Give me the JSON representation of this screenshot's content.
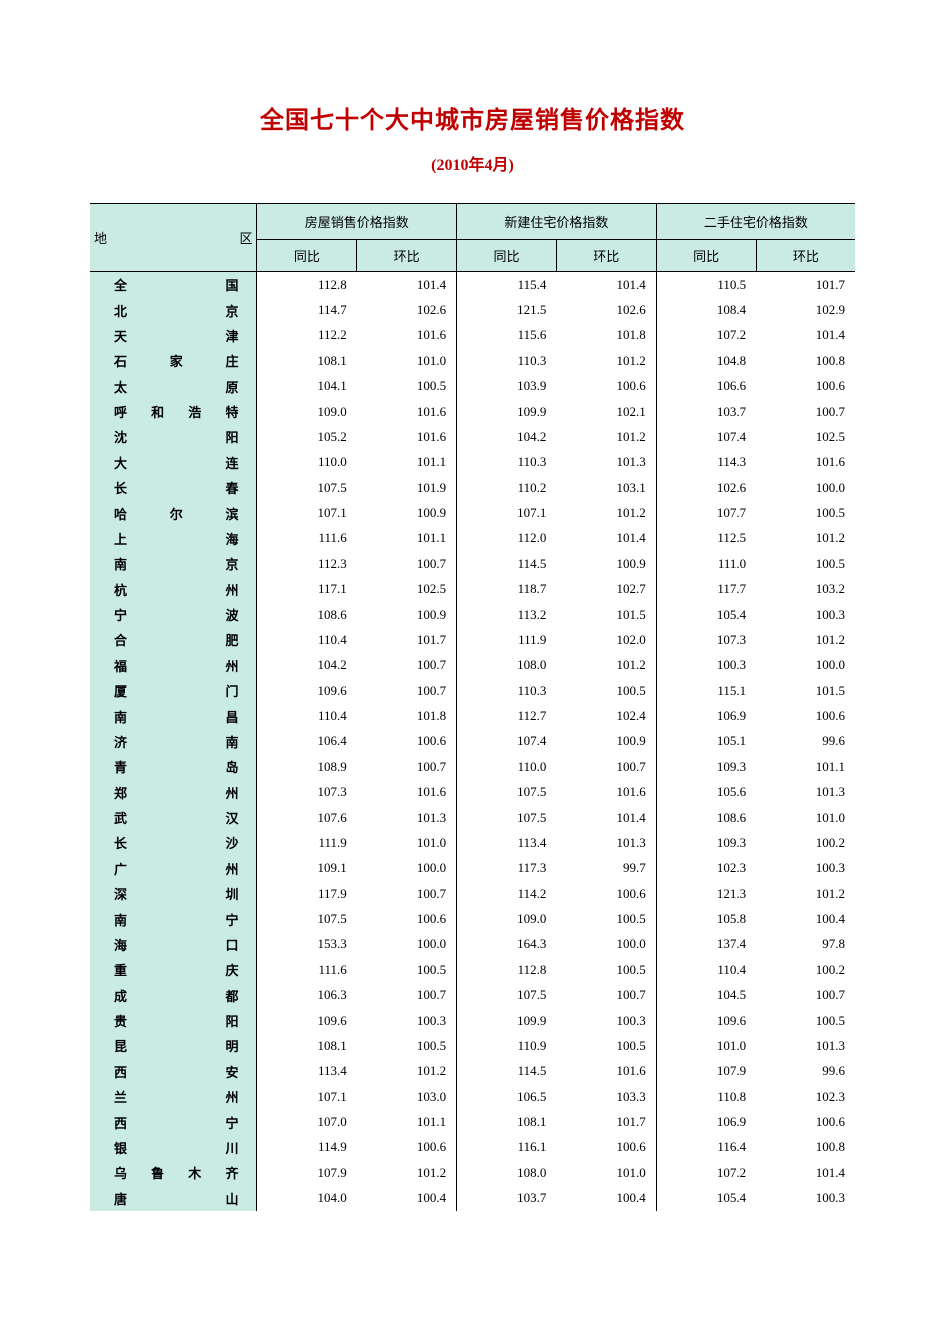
{
  "title": "全国七十个大中城市房屋销售价格指数",
  "title_color": "#c00000",
  "subtitle": "(2010年4月)",
  "subtitle_color": "#c00000",
  "header_bg": "#c9ebe4",
  "region_col_bg": "#c9ebe4",
  "columns": {
    "region": "地　区",
    "group1": "房屋销售价格指数",
    "group2": "新建住宅价格指数",
    "group3": "二手住宅价格指数",
    "yoy": "同比",
    "mom": "环比"
  },
  "rows": [
    {
      "region": "全　国",
      "v": [
        "112.8",
        "101.4",
        "115.4",
        "101.4",
        "110.5",
        "101.7"
      ]
    },
    {
      "region": "北　京",
      "v": [
        "114.7",
        "102.6",
        "121.5",
        "102.6",
        "108.4",
        "102.9"
      ]
    },
    {
      "region": "天　津",
      "v": [
        "112.2",
        "101.6",
        "115.6",
        "101.8",
        "107.2",
        "101.4"
      ]
    },
    {
      "region": "石 家 庄",
      "v": [
        "108.1",
        "101.0",
        "110.3",
        "101.2",
        "104.8",
        "100.8"
      ]
    },
    {
      "region": "太　原",
      "v": [
        "104.1",
        "100.5",
        "103.9",
        "100.6",
        "106.6",
        "100.6"
      ]
    },
    {
      "region": "呼和浩特",
      "v": [
        "109.0",
        "101.6",
        "109.9",
        "102.1",
        "103.7",
        "100.7"
      ]
    },
    {
      "region": "沈　阳",
      "v": [
        "105.2",
        "101.6",
        "104.2",
        "101.2",
        "107.4",
        "102.5"
      ]
    },
    {
      "region": "大　连",
      "v": [
        "110.0",
        "101.1",
        "110.3",
        "101.3",
        "114.3",
        "101.6"
      ]
    },
    {
      "region": "长　春",
      "v": [
        "107.5",
        "101.9",
        "110.2",
        "103.1",
        "102.6",
        "100.0"
      ]
    },
    {
      "region": "哈 尔 滨",
      "v": [
        "107.1",
        "100.9",
        "107.1",
        "101.2",
        "107.7",
        "100.5"
      ]
    },
    {
      "region": "上　海",
      "v": [
        "111.6",
        "101.1",
        "112.0",
        "101.4",
        "112.5",
        "101.2"
      ]
    },
    {
      "region": "南　京",
      "v": [
        "112.3",
        "100.7",
        "114.5",
        "100.9",
        "111.0",
        "100.5"
      ]
    },
    {
      "region": "杭　州",
      "v": [
        "117.1",
        "102.5",
        "118.7",
        "102.7",
        "117.7",
        "103.2"
      ]
    },
    {
      "region": "宁　波",
      "v": [
        "108.6",
        "100.9",
        "113.2",
        "101.5",
        "105.4",
        "100.3"
      ]
    },
    {
      "region": "合　肥",
      "v": [
        "110.4",
        "101.7",
        "111.9",
        "102.0",
        "107.3",
        "101.2"
      ]
    },
    {
      "region": "福　州",
      "v": [
        "104.2",
        "100.7",
        "108.0",
        "101.2",
        "100.3",
        "100.0"
      ]
    },
    {
      "region": "厦　门",
      "v": [
        "109.6",
        "100.7",
        "110.3",
        "100.5",
        "115.1",
        "101.5"
      ]
    },
    {
      "region": "南　昌",
      "v": [
        "110.4",
        "101.8",
        "112.7",
        "102.4",
        "106.9",
        "100.6"
      ]
    },
    {
      "region": "济　南",
      "v": [
        "106.4",
        "100.6",
        "107.4",
        "100.9",
        "105.1",
        "99.6"
      ]
    },
    {
      "region": "青　岛",
      "v": [
        "108.9",
        "100.7",
        "110.0",
        "100.7",
        "109.3",
        "101.1"
      ]
    },
    {
      "region": "郑　州",
      "v": [
        "107.3",
        "101.6",
        "107.5",
        "101.6",
        "105.6",
        "101.3"
      ]
    },
    {
      "region": "武　汉",
      "v": [
        "107.6",
        "101.3",
        "107.5",
        "101.4",
        "108.6",
        "101.0"
      ]
    },
    {
      "region": "长　沙",
      "v": [
        "111.9",
        "101.0",
        "113.4",
        "101.3",
        "109.3",
        "100.2"
      ]
    },
    {
      "region": "广　州",
      "v": [
        "109.1",
        "100.0",
        "117.3",
        "99.7",
        "102.3",
        "100.3"
      ]
    },
    {
      "region": "深　圳",
      "v": [
        "117.9",
        "100.7",
        "114.2",
        "100.6",
        "121.3",
        "101.2"
      ]
    },
    {
      "region": "南　宁",
      "v": [
        "107.5",
        "100.6",
        "109.0",
        "100.5",
        "105.8",
        "100.4"
      ]
    },
    {
      "region": "海　口",
      "v": [
        "153.3",
        "100.0",
        "164.3",
        "100.0",
        "137.4",
        "97.8"
      ]
    },
    {
      "region": "重　庆",
      "v": [
        "111.6",
        "100.5",
        "112.8",
        "100.5",
        "110.4",
        "100.2"
      ]
    },
    {
      "region": "成　都",
      "v": [
        "106.3",
        "100.7",
        "107.5",
        "100.7",
        "104.5",
        "100.7"
      ]
    },
    {
      "region": "贵　阳",
      "v": [
        "109.6",
        "100.3",
        "109.9",
        "100.3",
        "109.6",
        "100.5"
      ]
    },
    {
      "region": "昆　明",
      "v": [
        "108.1",
        "100.5",
        "110.9",
        "100.5",
        "101.0",
        "101.3"
      ]
    },
    {
      "region": "西　安",
      "v": [
        "113.4",
        "101.2",
        "114.5",
        "101.6",
        "107.9",
        "99.6"
      ]
    },
    {
      "region": "兰　州",
      "v": [
        "107.1",
        "103.0",
        "106.5",
        "103.3",
        "110.8",
        "102.3"
      ]
    },
    {
      "region": "西　宁",
      "v": [
        "107.0",
        "101.1",
        "108.1",
        "101.7",
        "106.9",
        "100.6"
      ]
    },
    {
      "region": "银　川",
      "v": [
        "114.9",
        "100.6",
        "116.1",
        "100.6",
        "116.4",
        "100.8"
      ]
    },
    {
      "region": "乌鲁木齐",
      "v": [
        "107.9",
        "101.2",
        "108.0",
        "101.0",
        "107.2",
        "101.4"
      ]
    },
    {
      "region": "唐　山",
      "v": [
        "104.0",
        "100.4",
        "103.7",
        "100.4",
        "105.4",
        "100.3"
      ]
    }
  ]
}
